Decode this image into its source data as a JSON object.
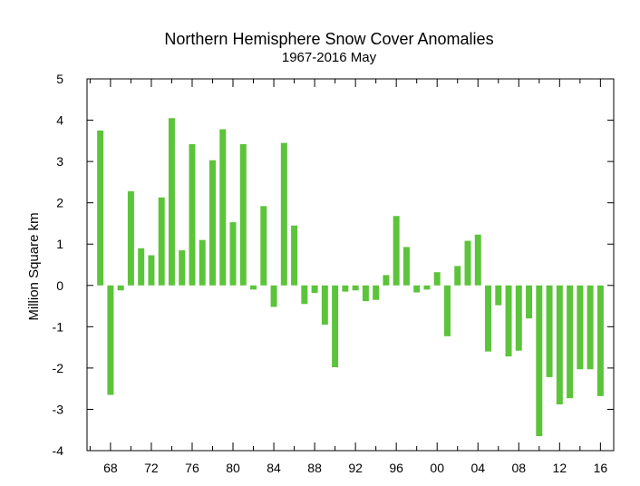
{
  "chart_data": {
    "type": "bar",
    "title": "Northern Hemisphere Snow Cover Anomalies",
    "subtitle": "1967-2016 May",
    "xlabel": "",
    "ylabel": "Million Square km",
    "ylim": [
      -4,
      5
    ],
    "yticks": [
      -4,
      -3,
      -2,
      -1,
      0,
      1,
      2,
      3,
      4,
      5
    ],
    "xlim": [
      1965.7,
      2017.3
    ],
    "xticks": [
      {
        "year": 1968,
        "label": "68"
      },
      {
        "year": 1972,
        "label": "72"
      },
      {
        "year": 1976,
        "label": "76"
      },
      {
        "year": 1980,
        "label": "80"
      },
      {
        "year": 1984,
        "label": "84"
      },
      {
        "year": 1988,
        "label": "88"
      },
      {
        "year": 1992,
        "label": "92"
      },
      {
        "year": 1996,
        "label": "96"
      },
      {
        "year": 2000,
        "label": "00"
      },
      {
        "year": 2004,
        "label": "04"
      },
      {
        "year": 2008,
        "label": "08"
      },
      {
        "year": 2012,
        "label": "12"
      },
      {
        "year": 2016,
        "label": "16"
      }
    ],
    "bar_color": "#5cc43a",
    "grid": false,
    "x": [
      1967,
      1968,
      1969,
      1970,
      1971,
      1972,
      1973,
      1974,
      1975,
      1976,
      1977,
      1978,
      1979,
      1980,
      1981,
      1982,
      1983,
      1984,
      1985,
      1986,
      1987,
      1988,
      1989,
      1990,
      1991,
      1992,
      1993,
      1994,
      1995,
      1996,
      1997,
      1998,
      1999,
      2000,
      2001,
      2002,
      2003,
      2004,
      2005,
      2006,
      2007,
      2008,
      2009,
      2010,
      2011,
      2012,
      2013,
      2014,
      2015,
      2016
    ],
    "values": [
      3.75,
      -2.65,
      -0.12,
      2.28,
      0.9,
      0.73,
      2.13,
      4.05,
      0.85,
      3.42,
      1.1,
      3.03,
      3.78,
      1.53,
      3.42,
      -0.1,
      1.92,
      -0.52,
      3.45,
      1.45,
      -0.45,
      -0.18,
      -0.95,
      -1.98,
      -0.15,
      -0.12,
      -0.38,
      -0.35,
      0.25,
      1.68,
      0.93,
      -0.17,
      -0.1,
      0.32,
      -1.23,
      0.47,
      1.08,
      1.23,
      -1.6,
      -0.48,
      -1.72,
      -1.58,
      -0.8,
      -3.65,
      -2.22,
      -2.88,
      -2.73,
      -2.03,
      -2.03,
      -2.68
    ]
  }
}
